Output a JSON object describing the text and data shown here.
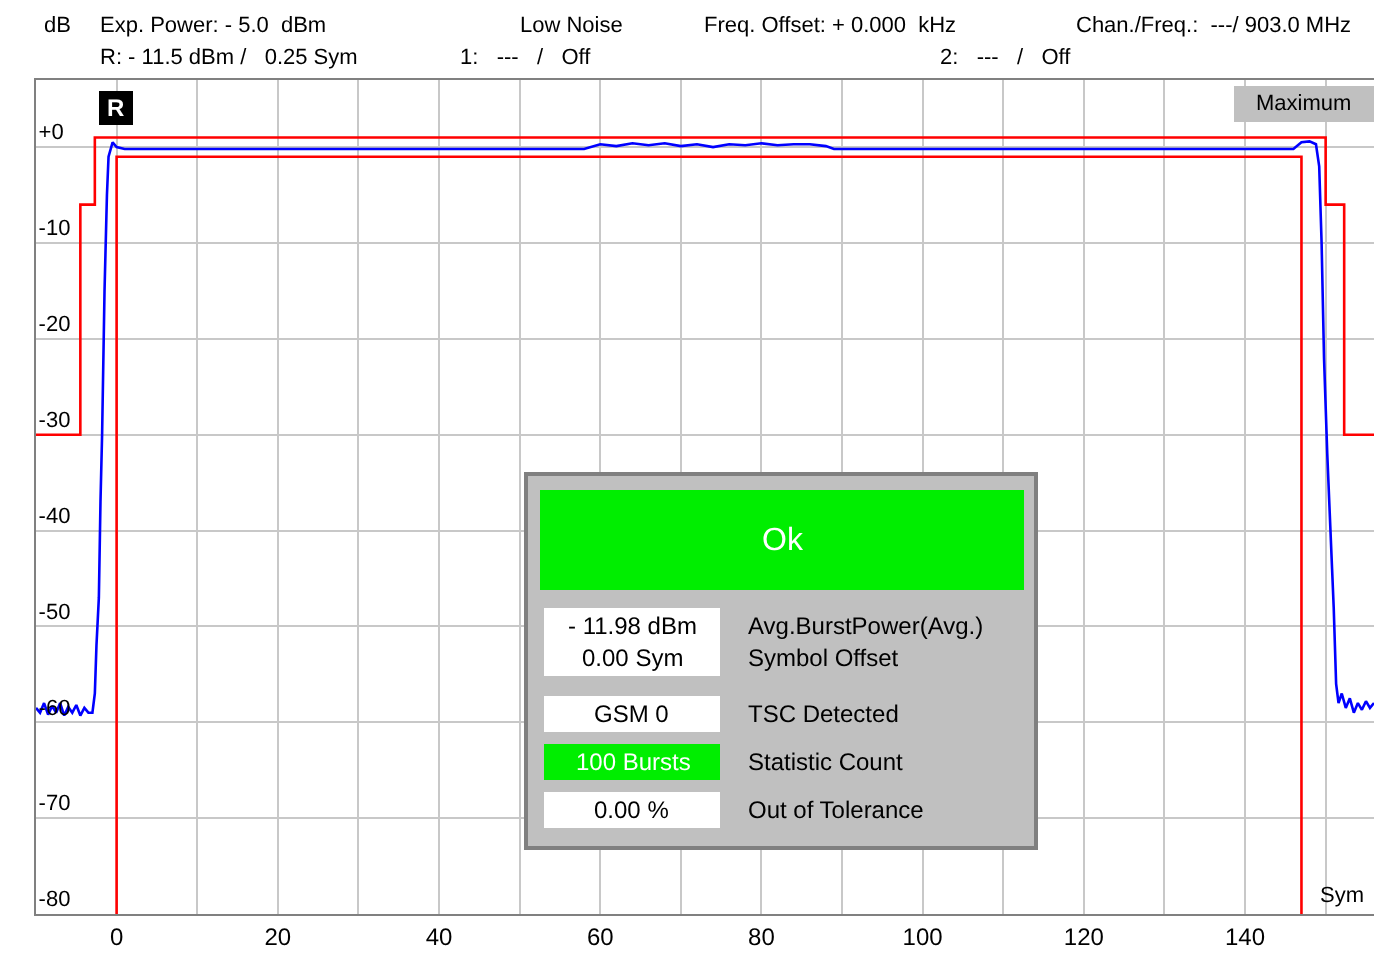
{
  "chart_data": {
    "type": "line",
    "ylabel": "dB",
    "xlabel": "Sym",
    "xlim": [
      -10,
      156
    ],
    "ylim": [
      -80,
      7
    ],
    "xticks": [
      {
        "value": -10,
        "label": null
      },
      0,
      {
        "value": 10,
        "label": null
      },
      20,
      {
        "value": 30,
        "label": null
      },
      40,
      {
        "value": 50,
        "label": null
      },
      60,
      {
        "value": 70,
        "label": null
      },
      80,
      {
        "value": 90,
        "label": null
      },
      100,
      {
        "value": 110,
        "label": null
      },
      120,
      {
        "value": 130,
        "label": null
      },
      140,
      {
        "value": 150,
        "label": null
      }
    ],
    "yticks": [
      {
        "value": 0,
        "label": "+0"
      },
      -10,
      -20,
      -30,
      -40,
      -50,
      -60,
      -70,
      -80
    ],
    "grid": true,
    "marker": "none",
    "line_style": "solid",
    "series": [
      {
        "color": "#0000ff",
        "x": [
          -10,
          -9.5,
          -9,
          -8.5,
          -8,
          -7.5,
          -7,
          -6.5,
          -6,
          -5.5,
          -5,
          -4.5,
          -4,
          -3.5,
          -3,
          -2.7,
          -2.5,
          -2.2,
          -2,
          -1.8,
          -1.5,
          -1.2,
          -1,
          -0.5,
          0,
          1,
          20,
          40,
          58,
          60,
          62,
          64,
          66,
          68,
          70,
          72,
          74,
          76,
          78,
          80,
          82,
          84,
          86,
          88,
          89,
          120,
          146,
          147,
          148,
          148.8,
          149.2,
          149.5,
          149.8,
          150.2,
          150.5,
          150.8,
          151,
          151.3,
          151.6,
          152,
          152.5,
          153,
          153.5,
          154,
          154.5,
          155,
          155.5,
          156
        ],
        "values": [
          -58.5,
          -59,
          -58,
          -59.2,
          -58.3,
          -59,
          -58,
          -59.3,
          -58.4,
          -59,
          -58.2,
          -59.3,
          -58.5,
          -59,
          -59,
          -57,
          -52,
          -47,
          -37,
          -30,
          -15,
          -5,
          -1,
          0.5,
          0,
          -0.2,
          -0.2,
          -0.2,
          -0.2,
          0.3,
          0.1,
          0.4,
          0.2,
          0.4,
          0.1,
          0.3,
          0,
          0.3,
          0.2,
          0.4,
          0.2,
          0.3,
          0.3,
          0.1,
          -0.2,
          -0.2,
          -0.2,
          0.5,
          0.6,
          0.3,
          -2,
          -10,
          -22,
          -32,
          -38,
          -44,
          -48,
          -56,
          -58,
          -57,
          -58.5,
          -57.5,
          -59,
          -58,
          -58.7,
          -57.8,
          -58.5,
          -58
        ]
      },
      {
        "color": "#ff0000",
        "x": [
          -10,
          -4.5,
          -4.5,
          -2.7,
          -2.7,
          150,
          150,
          152.3,
          152.3,
          156
        ],
        "values": [
          -30,
          -30,
          -6,
          -6,
          1,
          1,
          -6,
          -6,
          -30,
          -30
        ]
      },
      {
        "color": "#ff0000",
        "x": [
          0,
          0,
          147,
          147
        ],
        "values": [
          -80,
          -1,
          -1,
          -80
        ]
      }
    ],
    "annotations": [
      {
        "text": "R",
        "x": 0,
        "y": 4
      },
      "Exp. Power: - 5.0  dBm",
      "Low Noise",
      "Freq. Offset: + 0.000  kHz",
      "Chan./Freq.:  ---/ 903.0 MHz",
      "R: - 11.5 dBm /   0.25 Sym",
      "1:   ---   /   Off",
      "2:   ---   /   Off",
      "Maximum",
      "Ok",
      "- 11.98 dBm",
      "0.00 Sym",
      "Avg.BurstPower(Avg.)",
      "Symbol Offset",
      "GSM 0",
      "TSC Detected",
      "100 Bursts",
      "Statistic Count",
      "0.00 %",
      "Out of Tolerance"
    ]
  }
}
